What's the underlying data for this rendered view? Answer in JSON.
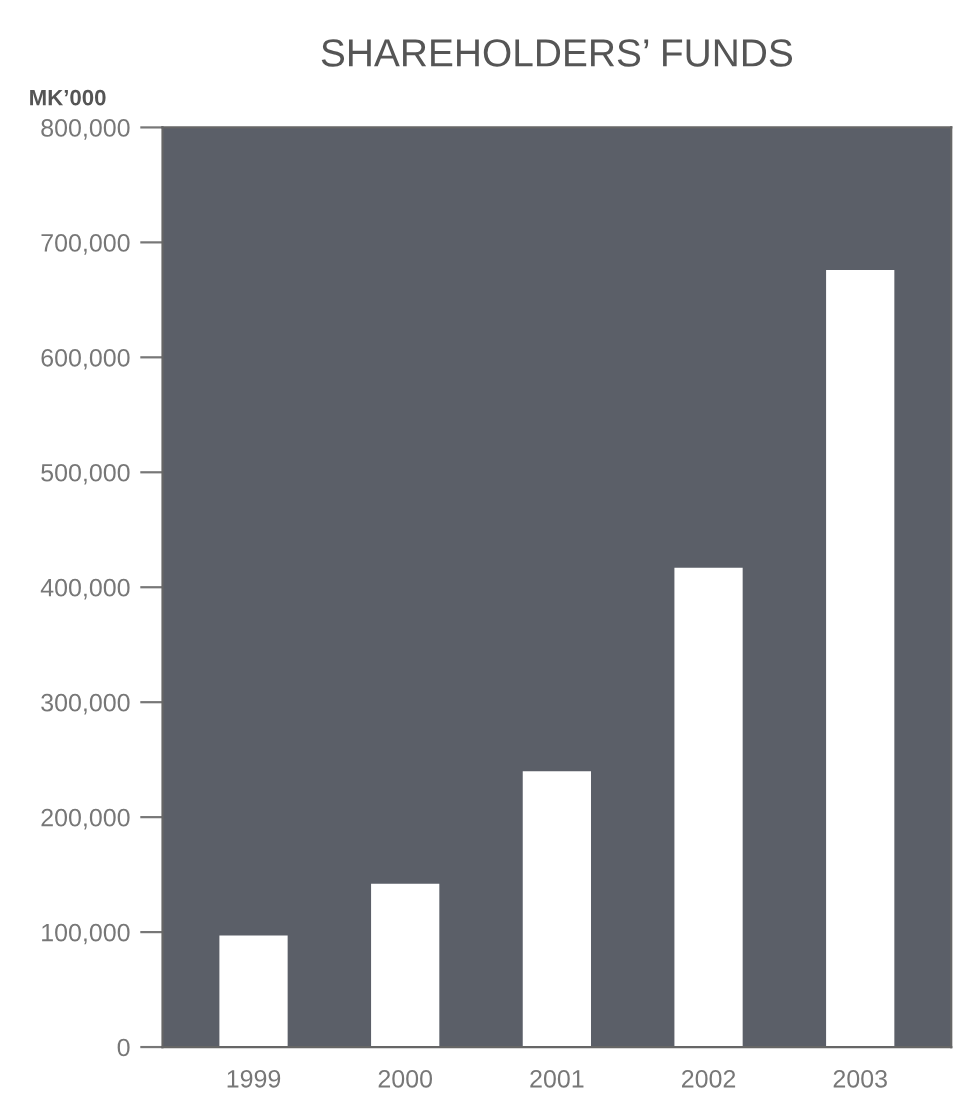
{
  "chart_data": {
    "type": "bar",
    "title": "SHAREHOLDERS’ FUNDS",
    "ylabel": "MK’000",
    "categories": [
      "1999",
      "2000",
      "2001",
      "2002",
      "2003"
    ],
    "values": [
      97000,
      142000,
      240000,
      417000,
      676000
    ],
    "color": "#ffffff",
    "ylim": [
      0,
      800000
    ],
    "yticks": [
      {
        "value": 0,
        "label": "0"
      },
      {
        "value": 100000,
        "label": "100,000"
      },
      {
        "value": 200000,
        "label": "200,000"
      },
      {
        "value": 300000,
        "label": "300,000"
      },
      {
        "value": 400000,
        "label": "400,000"
      },
      {
        "value": 500000,
        "label": "500,000"
      },
      {
        "value": 600000,
        "label": "600,000"
      },
      {
        "value": 700000,
        "label": "700,000"
      },
      {
        "value": 800000,
        "label": "800,000"
      }
    ],
    "grid": false
  }
}
